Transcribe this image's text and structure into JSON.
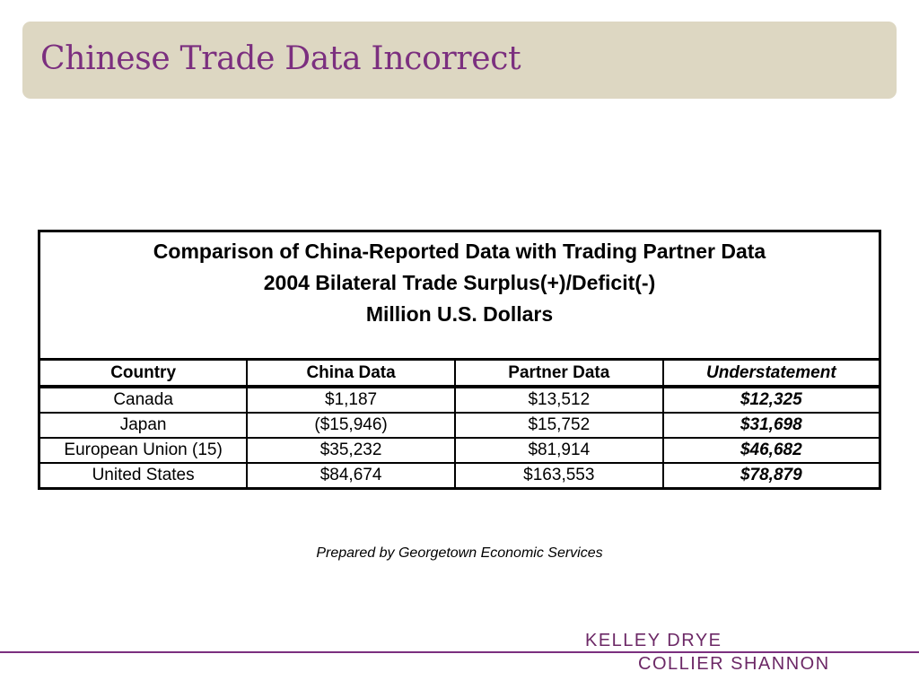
{
  "slide": {
    "title": "Chinese Trade Data Incorrect"
  },
  "table": {
    "heading": [
      "Comparison of China-Reported Data with Trading Partner Data",
      "2004 Bilateral Trade Surplus(+)/Deficit(-)",
      "Million U.S. Dollars"
    ],
    "columns": [
      "Country",
      "China Data",
      "Partner Data",
      "Understatement"
    ],
    "rows": [
      [
        "Canada",
        "$1,187",
        "$13,512",
        "$12,325"
      ],
      [
        "Japan",
        "($15,946)",
        "$15,752",
        "$31,698"
      ],
      [
        "European Union (15)",
        "$35,232",
        "$81,914",
        "$46,682"
      ],
      [
        "United States",
        "$84,674",
        "$163,553",
        "$78,879"
      ]
    ]
  },
  "credit": "Prepared by Georgetown Economic Services",
  "footer": {
    "logo_line1": "KELLEY DRYE",
    "logo_line2": "COLLIER SHANNON",
    "accent_color": "#7b2f7f"
  }
}
